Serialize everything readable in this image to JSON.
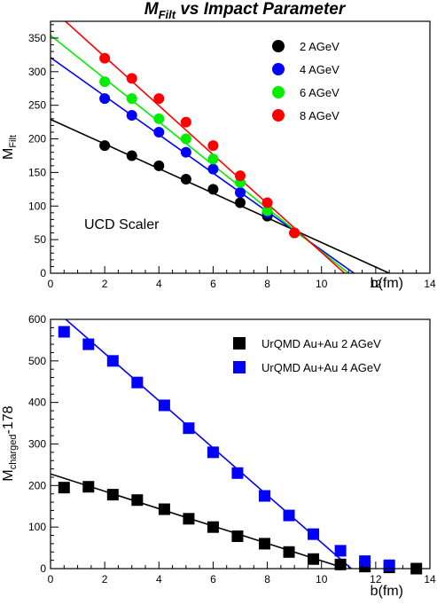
{
  "title": {
    "main": "M",
    "sub": "Filt",
    "rest": " vs Impact Parameter"
  },
  "chart_data": [
    {
      "type": "scatter",
      "xlabel": "b(fm)",
      "ylabel": {
        "main": "M",
        "sub": "Filt"
      },
      "xlim": [
        0,
        14
      ],
      "ylim": [
        0,
        375
      ],
      "xticks": [
        0,
        2,
        4,
        6,
        8,
        10,
        12,
        14
      ],
      "yticks": [
        0,
        50,
        100,
        150,
        200,
        250,
        300,
        350
      ],
      "annotation": "UCD Scaler",
      "legend": "top-right",
      "series": [
        {
          "name": "2 AGeV",
          "color": "#000000",
          "x": [
            2,
            3,
            4,
            5,
            6,
            7,
            8,
            9
          ],
          "y": [
            190,
            175,
            160,
            140,
            125,
            105,
            85,
            60
          ],
          "fit": [
            [
              0,
              229
            ],
            [
              12.5,
              0
            ]
          ]
        },
        {
          "name": "4 AGeV",
          "color": "#0000ff",
          "x": [
            2,
            3,
            4,
            5,
            6,
            7,
            8,
            9
          ],
          "y": [
            260,
            235,
            210,
            180,
            155,
            120,
            90,
            60
          ],
          "fit": [
            [
              0,
              321
            ],
            [
              11.2,
              0
            ]
          ]
        },
        {
          "name": "6 AGeV",
          "color": "#00ee00",
          "x": [
            2,
            3,
            4,
            5,
            6,
            7,
            8,
            9
          ],
          "y": [
            285,
            260,
            230,
            200,
            170,
            135,
            93,
            60
          ],
          "fit": [
            [
              0,
              354
            ],
            [
              11.0,
              0
            ]
          ]
        },
        {
          "name": "8 AGeV",
          "color": "#ff0000",
          "x": [
            2,
            3,
            4,
            5,
            6,
            7,
            8,
            9
          ],
          "y": [
            320,
            290,
            260,
            225,
            190,
            145,
            105,
            60
          ],
          "fit": [
            [
              0,
              395
            ],
            [
              10.85,
              0
            ]
          ]
        }
      ]
    },
    {
      "type": "scatter",
      "xlabel": "b(fm)",
      "ylabel": {
        "main": "M",
        "sub": "charged",
        "rest": "-178"
      },
      "xlim": [
        0,
        14
      ],
      "ylim": [
        0,
        600
      ],
      "xticks": [
        0,
        2,
        4,
        6,
        8,
        10,
        12,
        14
      ],
      "yticks": [
        0,
        100,
        200,
        300,
        400,
        500,
        600
      ],
      "legend": "top-right",
      "series": [
        {
          "name": "UrQMD Au+Au 2 AGeV",
          "color": "#000000",
          "x": [
            0.5,
            1.4,
            2.3,
            3.2,
            4.2,
            5.1,
            6.0,
            6.9,
            7.9,
            8.8,
            9.7,
            10.7,
            11.6,
            12.5,
            13.5
          ],
          "y": [
            195,
            197,
            178,
            165,
            143,
            120,
            100,
            78,
            60,
            40,
            23,
            10,
            5,
            3,
            0
          ],
          "fit": [
            [
              0,
              228
            ],
            [
              10.9,
              0
            ]
          ]
        },
        {
          "name": "UrQMD Au+Au 4 AGeV",
          "color": "#0000ff",
          "x": [
            0.5,
            1.4,
            2.3,
            3.2,
            4.2,
            5.1,
            6.0,
            6.9,
            7.9,
            8.8,
            9.7,
            10.7,
            11.6,
            12.5
          ],
          "y": [
            570,
            540,
            500,
            448,
            393,
            338,
            280,
            230,
            175,
            128,
            83,
            43,
            18,
            8
          ],
          "fit": [
            [
              0,
              632
            ],
            [
              11.1,
              0
            ]
          ]
        }
      ]
    }
  ]
}
